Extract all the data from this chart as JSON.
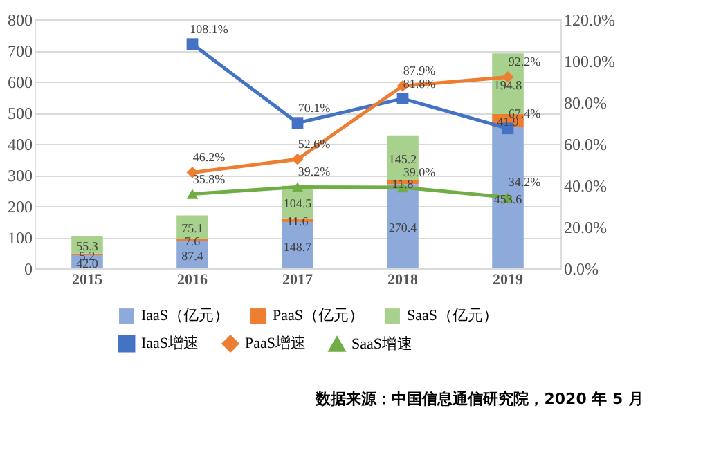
{
  "chart_data": {
    "type": "bar",
    "stacked": true,
    "categories": [
      "2015",
      "2016",
      "2017",
      "2018",
      "2019"
    ],
    "series": [
      {
        "name": "IaaS（亿元）",
        "color": "#8eaadb",
        "values": [
          42.0,
          87.4,
          148.7,
          270.4,
          453.6
        ],
        "value_labels": [
          "42.0",
          "87.4",
          "148.7",
          "270.4",
          "453.6"
        ]
      },
      {
        "name": "PaaS（亿元）",
        "color": "#ed7d31",
        "values": [
          5.2,
          7.6,
          11.6,
          11.8,
          41.9
        ],
        "value_labels": [
          "5.2",
          "7.6",
          "11.6",
          "11.8",
          "41.9"
        ]
      },
      {
        "name": "SaaS（亿元）",
        "color": "#a9d18e",
        "values": [
          55.3,
          75.1,
          104.5,
          145.2,
          194.8
        ],
        "value_labels": [
          "55.3",
          "75.1",
          "104.5",
          "145.2",
          "194.8"
        ]
      },
      {
        "name": "IaaS增速",
        "type": "line",
        "axis": "y2",
        "marker": "square",
        "color": "#4472c4",
        "values": [
          null,
          108.1,
          70.1,
          81.8,
          67.4
        ],
        "value_labels": [
          null,
          "108.1%",
          "70.1%",
          "81.8%",
          "67.4%"
        ]
      },
      {
        "name": "PaaS增速",
        "type": "line",
        "axis": "y2",
        "marker": "diamond",
        "color": "#ed7d31",
        "values": [
          null,
          46.2,
          52.6,
          87.9,
          92.2
        ],
        "value_labels": [
          null,
          "46.2%",
          "52.6%",
          "87.9%",
          "92.2%"
        ]
      },
      {
        "name": "SaaS增速",
        "type": "line",
        "axis": "y2",
        "marker": "triangle",
        "color": "#70ad47",
        "values": [
          null,
          35.8,
          39.2,
          39.0,
          34.2
        ],
        "value_labels": [
          null,
          "35.8%",
          "39.2%",
          "39.0%",
          "34.2%"
        ]
      }
    ],
    "ylim": [
      0,
      800
    ],
    "yticks": [
      0,
      100,
      200,
      300,
      400,
      500,
      600,
      700,
      800
    ],
    "y2lim": [
      0,
      120
    ],
    "y2ticks": [
      {
        "value": 0,
        "label": "0.0%"
      },
      {
        "value": 20,
        "label": "20.0%"
      },
      {
        "value": 40,
        "label": "40.0%"
      },
      {
        "value": 60,
        "label": "60.0%"
      },
      {
        "value": 80,
        "label": "80.0%"
      },
      {
        "value": 100,
        "label": "100.0%"
      },
      {
        "value": 120,
        "label": "120.0%"
      }
    ],
    "grid": "y",
    "legend": "bottom",
    "line_style": "solid",
    "annotations": [
      "数据来源：中国信息通信研究院，2020 年 5 月"
    ]
  }
}
